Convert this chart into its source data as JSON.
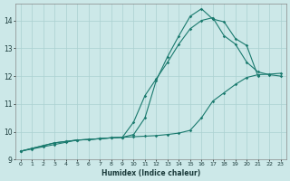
{
  "xlabel": "Humidex (Indice chaleur)",
  "ylabel": "",
  "xlim": [
    -0.5,
    23.5
  ],
  "ylim": [
    9.0,
    14.6
  ],
  "yticks": [
    9,
    10,
    11,
    12,
    13,
    14
  ],
  "xticks": [
    0,
    1,
    2,
    3,
    4,
    5,
    6,
    7,
    8,
    9,
    10,
    11,
    12,
    13,
    14,
    15,
    16,
    17,
    18,
    19,
    20,
    21,
    22,
    23
  ],
  "bg_color": "#cce8e8",
  "grid_color": "#aad0d0",
  "line_color": "#1a7a6e",
  "line1_x": [
    0,
    1,
    2,
    3,
    4,
    5,
    6,
    7,
    8,
    9,
    10,
    11,
    12,
    13,
    14,
    15,
    16,
    17,
    18,
    19,
    20,
    21
  ],
  "line1_y": [
    9.3,
    9.4,
    9.5,
    9.6,
    9.65,
    9.7,
    9.72,
    9.75,
    9.78,
    9.8,
    9.9,
    10.5,
    11.85,
    12.7,
    13.45,
    14.15,
    14.42,
    14.05,
    13.95,
    13.35,
    13.1,
    12.0
  ],
  "line2_x": [
    0,
    1,
    2,
    3,
    4,
    5,
    6,
    7,
    8,
    9,
    10,
    11,
    12,
    13,
    14,
    15,
    16,
    17,
    18,
    19,
    20,
    21,
    22,
    23
  ],
  "line2_y": [
    9.3,
    9.4,
    9.5,
    9.6,
    9.65,
    9.7,
    9.72,
    9.75,
    9.78,
    9.8,
    10.35,
    11.3,
    11.9,
    12.5,
    13.15,
    13.7,
    14.0,
    14.1,
    13.45,
    13.15,
    12.5,
    12.15,
    12.05,
    12.0
  ],
  "line3_x": [
    0,
    1,
    2,
    3,
    4,
    5,
    6,
    7,
    8,
    9,
    10,
    11,
    12,
    13,
    14,
    15,
    16,
    17,
    18,
    19,
    20,
    21,
    22,
    23
  ],
  "line3_y": [
    9.3,
    9.38,
    9.46,
    9.54,
    9.62,
    9.7,
    9.72,
    9.75,
    9.78,
    9.8,
    9.82,
    9.84,
    9.86,
    9.9,
    9.95,
    10.05,
    10.5,
    11.1,
    11.4,
    11.7,
    11.95,
    12.05,
    12.07,
    12.1
  ]
}
